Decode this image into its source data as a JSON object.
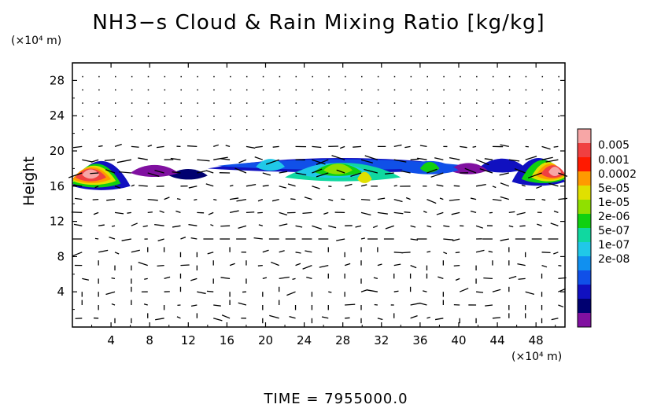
{
  "chart_data": {
    "type": "heatmap",
    "title": "NH3−s Cloud & Rain Mixing Ratio [kg/kg]",
    "x_unit": "(×10⁴ m)",
    "y_unit": "(×10⁴ m)",
    "ylabel": "Height",
    "xlim": [
      0,
      51
    ],
    "ylim": [
      0,
      30
    ],
    "x_ticks": [
      "4",
      "8",
      "12",
      "16",
      "20",
      "24",
      "28",
      "32",
      "36",
      "40",
      "44",
      "48"
    ],
    "y_ticks": [
      "4",
      "8",
      "12",
      "16",
      "20",
      "24",
      "28"
    ],
    "colorbar": {
      "labels": [
        "0.005",
        "0.001",
        "0.0002",
        "5e-05",
        "1e-05",
        "2e-06",
        "5e-07",
        "1e-07",
        "2e-08"
      ],
      "colors": [
        "#f7a6a6",
        "#f04040",
        "#ff1a00",
        "#ff9a00",
        "#e0e000",
        "#90e000",
        "#10d010",
        "#10d8a0",
        "#20c8e8",
        "#1090f0",
        "#1050e8",
        "#1010c0",
        "#000070",
        "#8010a0"
      ]
    },
    "cloud_layer": {
      "base_height": 16.5,
      "top_height": 20,
      "max_value": "0.005",
      "core_regions": [
        {
          "x_start": 0,
          "x_end": 5,
          "peak": "0.005"
        },
        {
          "x_start": 24,
          "x_end": 32,
          "peak": "0.0002"
        },
        {
          "x_start": 47,
          "x_end": 51,
          "peak": "0.005"
        }
      ]
    },
    "vectors": "wind vector field overlay",
    "time_label": "TIME",
    "time_value": "7955000.0"
  },
  "footer": {
    "text": "TIME  =  7955000.0"
  }
}
